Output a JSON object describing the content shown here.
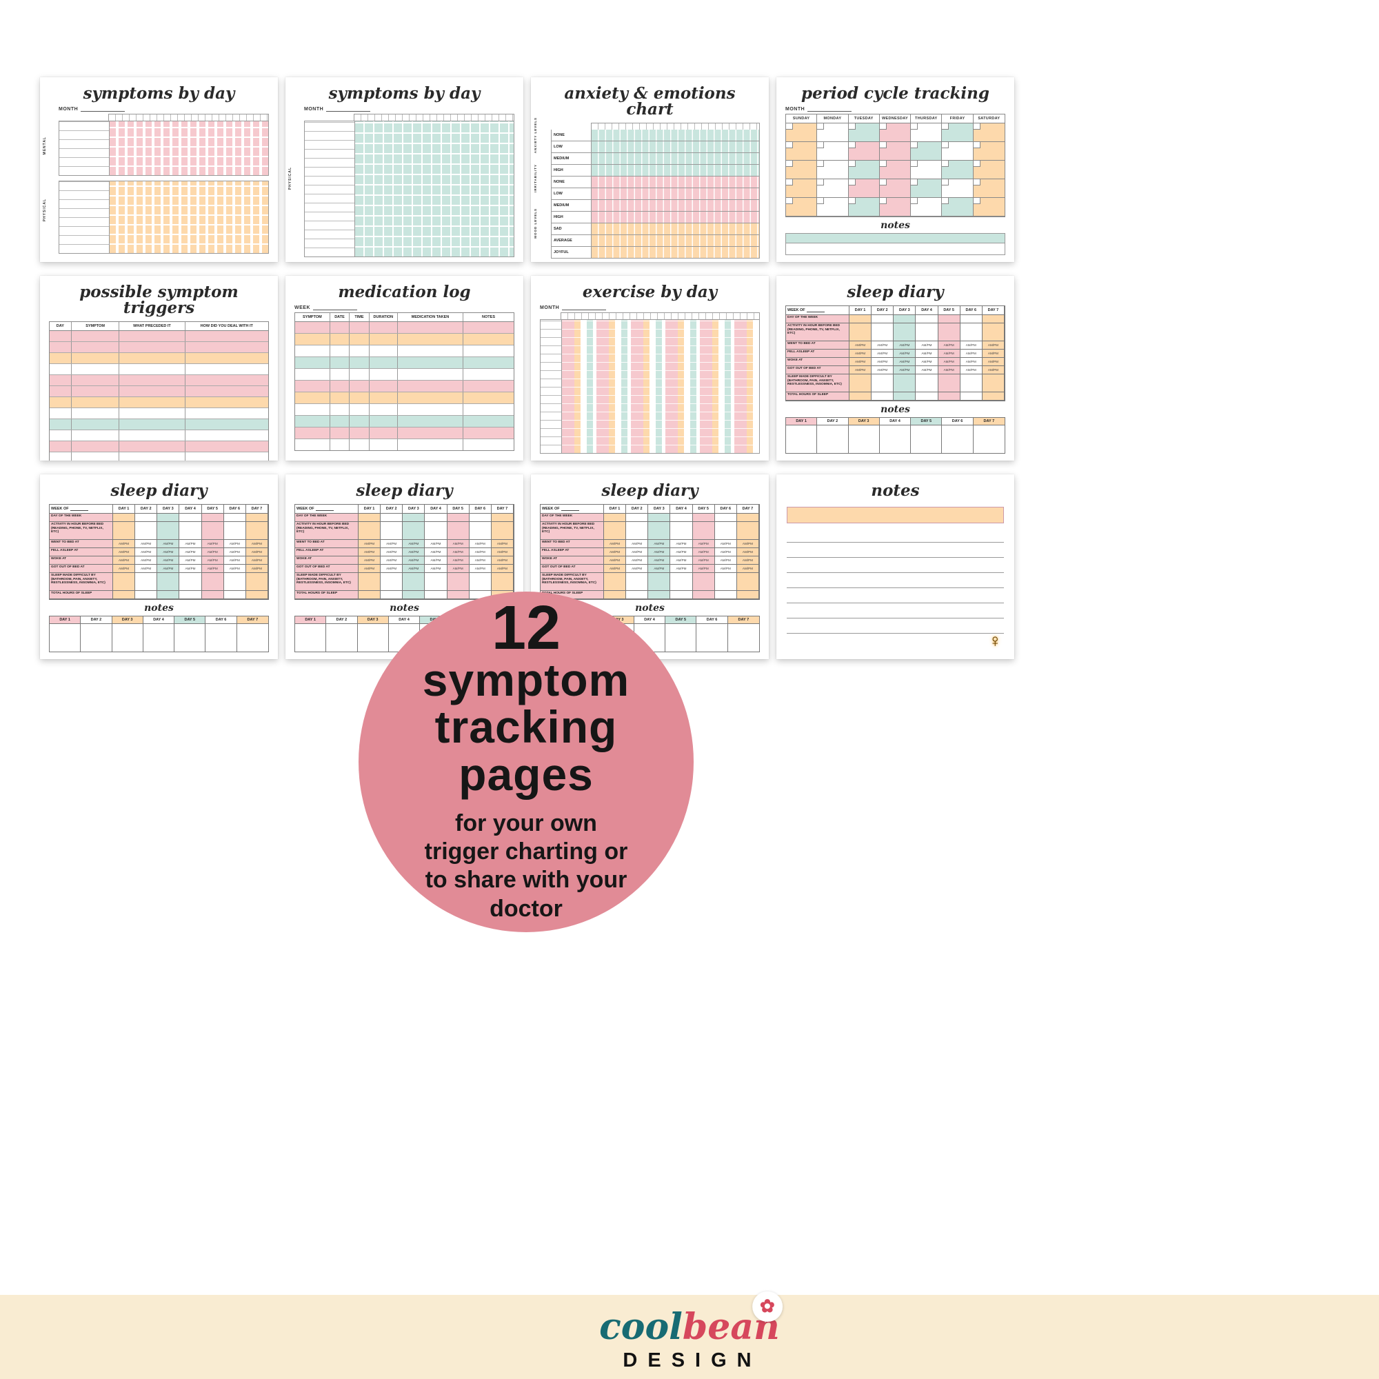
{
  "cards": {
    "symptoms_mental": {
      "title": "symptoms by day",
      "month_label": "MONTH",
      "section_top": "MENTAL",
      "section_bottom": "PHYSICAL"
    },
    "symptoms_physical": {
      "title": "symptoms by day",
      "month_label": "MONTH",
      "section": "PHYSICAL"
    },
    "anxiety": {
      "title": "anxiety & emotions chart",
      "side_labels": [
        "ANXIETY LEVELS",
        "IRRITABILITY",
        "MOOD LEVELS"
      ],
      "groups": [
        {
          "color": "teal",
          "labels": [
            "NONE",
            "LOW",
            "MEDIUM",
            "HIGH"
          ]
        },
        {
          "color": "pink",
          "labels": [
            "NONE",
            "LOW",
            "MEDIUM",
            "HIGH"
          ]
        },
        {
          "color": "peach",
          "labels": [
            "SAD",
            "AVERAGE",
            "JOYFUL"
          ]
        }
      ]
    },
    "period": {
      "title": "period cycle tracking",
      "month_label": "MONTH",
      "weekdays": [
        "SUNDAY",
        "MONDAY",
        "TUESDAY",
        "WEDNESDAY",
        "THURSDAY",
        "FRIDAY",
        "SATURDAY"
      ],
      "notes_label": "notes",
      "pattern": [
        [
          "peach",
          "white",
          "teal",
          "pink",
          "white",
          "teal",
          "peach"
        ],
        [
          "peach",
          "white",
          "pink",
          "pink",
          "teal",
          "white",
          "peach"
        ],
        [
          "peach",
          "white",
          "teal",
          "pink",
          "white",
          "teal",
          "peach"
        ],
        [
          "peach",
          "white",
          "pink",
          "pink",
          "teal",
          "white",
          "peach"
        ],
        [
          "peach",
          "white",
          "teal",
          "pink",
          "white",
          "teal",
          "peach"
        ]
      ]
    },
    "triggers": {
      "title": "possible symptom triggers",
      "headers": [
        "DAY",
        "SYMPTOM",
        "WHAT PRECEDED IT",
        "HOW DID YOU DEAL WITH IT"
      ],
      "row_colors": [
        "pink",
        "pink",
        "peach",
        "white",
        "pink",
        "pink",
        "peach",
        "white",
        "teal",
        "white",
        "pink",
        "white"
      ]
    },
    "medication": {
      "title": "medication log",
      "week_label": "WEEK",
      "headers": [
        "SYMPTOM",
        "DATE",
        "TIME",
        "DURATION",
        "MEDICATION TAKEN",
        "NOTES"
      ],
      "row_colors": [
        "pink",
        "peach",
        "white",
        "teal",
        "white",
        "pink",
        "peach",
        "white",
        "teal",
        "pink",
        "white"
      ]
    },
    "exercise": {
      "title": "exercise by day",
      "month_label": "MONTH"
    },
    "sleep": {
      "title": "sleep diary",
      "week_of": "WEEK OF",
      "days": [
        "DAY 1",
        "DAY 2",
        "DAY 3",
        "DAY 4",
        "DAY 5",
        "DAY 6",
        "DAY 7"
      ],
      "rows": {
        "day_of_week": "DAY OF THE WEEK",
        "activity": "ACTIVITY IN HOUR BEFORE BED (READING, PHONE, TV, NETFLIX, ETC)",
        "went_to_bed": "WENT TO BED AT",
        "fell_asleep": "FELL ASLEEP AT",
        "woke": "WOKE AT",
        "got_out": "GOT OUT OF BED AT",
        "difficult": "SLEEP MADE DIFFICULT BY (BATHROOM, PAIN, ANXIETY, RESTLESSNESS, INSOMNIA, ETC)",
        "total": "TOTAL HOURS OF SLEEP"
      },
      "ampm": "AM/PM",
      "notes_label": "notes"
    },
    "notes_page": {
      "title": "notes"
    }
  },
  "overlay": {
    "number": "12",
    "word1": "symptom",
    "word2": "tracking",
    "word3": "pages",
    "sub1": "for your own",
    "sub2": "trigger charting or",
    "sub3": "to share with your",
    "sub4": "doctor"
  },
  "footer": {
    "cool": "cool",
    "bean": "bean",
    "design": "DESIGN"
  },
  "icons": {
    "flower": "✿",
    "female": "♀"
  },
  "colors": {
    "pink": "#f6c9ce",
    "peach": "#fdd9ac",
    "teal": "#c9e5de",
    "circle": "#e18b96",
    "band": "#f9ecd2",
    "logo_teal": "#176b73",
    "logo_red": "#d6475c"
  }
}
